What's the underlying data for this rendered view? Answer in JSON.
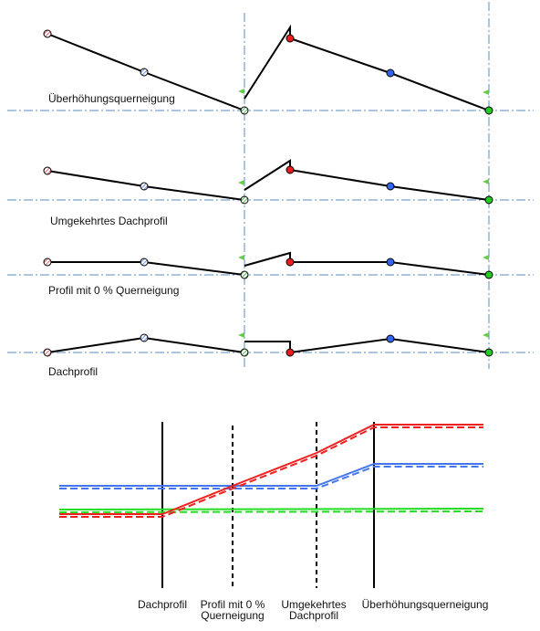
{
  "profiles": [
    {
      "id": "ueberhoehung",
      "label": "Überhöhungsquerneigung"
    },
    {
      "id": "umgekehrt",
      "label": "Umgekehrtes Dachprofil"
    },
    {
      "id": "null",
      "label": "Profil mit 0 % Querneigung"
    },
    {
      "id": "dach",
      "label": "Dachprofil"
    }
  ],
  "transition": {
    "stations": [
      {
        "label1": "Dachprofil",
        "label2": ""
      },
      {
        "label1": "Profil mit 0 %",
        "label2": "Querneigung"
      },
      {
        "label1": "Umgekehrtes",
        "label2": "Dachprofil"
      },
      {
        "label1": "Überhöhungsquerneigung",
        "label2": ""
      }
    ]
  },
  "colors": {
    "red": "#ee1c1c",
    "blue": "#3366ee",
    "green": "#22cc22",
    "axis": "#5a8ec0",
    "flag": "#66cc44"
  }
}
